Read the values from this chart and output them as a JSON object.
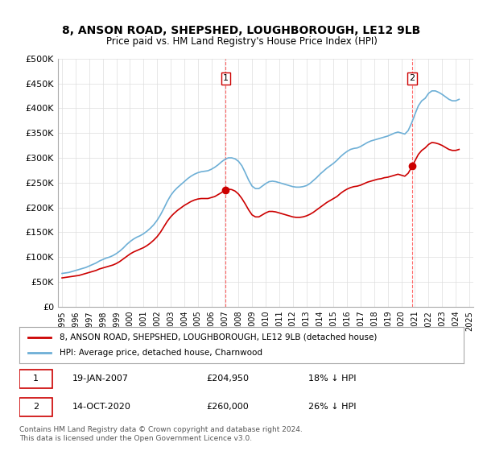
{
  "title": "8, ANSON ROAD, SHEPSHED, LOUGHBOROUGH, LE12 9LB",
  "subtitle": "Price paid vs. HM Land Registry's House Price Index (HPI)",
  "xlabel": "",
  "ylabel": "",
  "ylim": [
    0,
    500000
  ],
  "yticks": [
    0,
    50000,
    100000,
    150000,
    200000,
    250000,
    300000,
    350000,
    400000,
    450000,
    500000
  ],
  "ytick_labels": [
    "£0",
    "£50K",
    "£100K",
    "£150K",
    "£200K",
    "£250K",
    "£300K",
    "£350K",
    "£400K",
    "£450K",
    "£500K"
  ],
  "hpi_color": "#6dafd6",
  "price_color": "#cc0000",
  "annotation_color": "#cc0000",
  "vline_color": "#ff6666",
  "bg_color": "#ffffff",
  "grid_color": "#dddddd",
  "legend_box_color": "#000000",
  "transaction1_date_num": 2007.05,
  "transaction1_label": "1",
  "transaction1_price": 204950,
  "transaction1_text": "19-JAN-2007     £204,950     18% ↓ HPI",
  "transaction2_date_num": 2020.79,
  "transaction2_label": "2",
  "transaction2_price": 260000,
  "transaction2_text": "14-OCT-2020     £260,000     26% ↓ HPI",
  "legend_line1": "8, ANSON ROAD, SHEPSHED, LOUGHBOROUGH, LE12 9LB (detached house)",
  "legend_line2": "HPI: Average price, detached house, Charnwood",
  "footer": "Contains HM Land Registry data © Crown copyright and database right 2024.\nThis data is licensed under the Open Government Licence v3.0.",
  "hpi_x": [
    1995.0,
    1995.25,
    1995.5,
    1995.75,
    1996.0,
    1996.25,
    1996.5,
    1996.75,
    1997.0,
    1997.25,
    1997.5,
    1997.75,
    1998.0,
    1998.25,
    1998.5,
    1998.75,
    1999.0,
    1999.25,
    1999.5,
    1999.75,
    2000.0,
    2000.25,
    2000.5,
    2000.75,
    2001.0,
    2001.25,
    2001.5,
    2001.75,
    2002.0,
    2002.25,
    2002.5,
    2002.75,
    2003.0,
    2003.25,
    2003.5,
    2003.75,
    2004.0,
    2004.25,
    2004.5,
    2004.75,
    2005.0,
    2005.25,
    2005.5,
    2005.75,
    2006.0,
    2006.25,
    2006.5,
    2006.75,
    2007.0,
    2007.25,
    2007.5,
    2007.75,
    2008.0,
    2008.25,
    2008.5,
    2008.75,
    2009.0,
    2009.25,
    2009.5,
    2009.75,
    2010.0,
    2010.25,
    2010.5,
    2010.75,
    2011.0,
    2011.25,
    2011.5,
    2011.75,
    2012.0,
    2012.25,
    2012.5,
    2012.75,
    2013.0,
    2013.25,
    2013.5,
    2013.75,
    2014.0,
    2014.25,
    2014.5,
    2014.75,
    2015.0,
    2015.25,
    2015.5,
    2015.75,
    2016.0,
    2016.25,
    2016.5,
    2016.75,
    2017.0,
    2017.25,
    2017.5,
    2017.75,
    2018.0,
    2018.25,
    2018.5,
    2018.75,
    2019.0,
    2019.25,
    2019.5,
    2019.75,
    2020.0,
    2020.25,
    2020.5,
    2020.75,
    2021.0,
    2021.25,
    2021.5,
    2021.75,
    2022.0,
    2022.25,
    2022.5,
    2022.75,
    2023.0,
    2023.25,
    2023.5,
    2023.75,
    2024.0,
    2024.25
  ],
  "hpi_y": [
    67000,
    68000,
    69000,
    71000,
    73000,
    75000,
    77000,
    79000,
    82000,
    85000,
    88000,
    92000,
    95000,
    98000,
    100000,
    103000,
    107000,
    112000,
    118000,
    125000,
    131000,
    136000,
    140000,
    143000,
    147000,
    152000,
    158000,
    165000,
    174000,
    185000,
    198000,
    212000,
    224000,
    233000,
    240000,
    246000,
    252000,
    258000,
    263000,
    267000,
    270000,
    272000,
    273000,
    274000,
    277000,
    281000,
    286000,
    292000,
    297000,
    300000,
    300000,
    298000,
    293000,
    284000,
    270000,
    255000,
    243000,
    238000,
    238000,
    243000,
    248000,
    252000,
    253000,
    252000,
    250000,
    248000,
    246000,
    244000,
    242000,
    241000,
    241000,
    242000,
    244000,
    248000,
    254000,
    260000,
    267000,
    273000,
    279000,
    284000,
    289000,
    295000,
    302000,
    308000,
    313000,
    317000,
    319000,
    320000,
    323000,
    327000,
    331000,
    334000,
    336000,
    338000,
    340000,
    342000,
    344000,
    347000,
    350000,
    352000,
    350000,
    348000,
    355000,
    370000,
    388000,
    405000,
    415000,
    420000,
    430000,
    435000,
    435000,
    432000,
    428000,
    423000,
    418000,
    415000,
    415000,
    418000
  ],
  "price_x": [
    1995.0,
    1995.25,
    1995.5,
    1995.75,
    1996.0,
    1996.25,
    1996.5,
    1996.75,
    1997.0,
    1997.25,
    1997.5,
    1997.75,
    1998.0,
    1998.25,
    1998.5,
    1998.75,
    1999.0,
    1999.25,
    1999.5,
    1999.75,
    2000.0,
    2000.25,
    2000.5,
    2000.75,
    2001.0,
    2001.25,
    2001.5,
    2001.75,
    2002.0,
    2002.25,
    2002.5,
    2002.75,
    2003.0,
    2003.25,
    2003.5,
    2003.75,
    2004.0,
    2004.25,
    2004.5,
    2004.75,
    2005.0,
    2005.25,
    2005.5,
    2005.75,
    2006.0,
    2006.25,
    2006.5,
    2006.75,
    2007.0,
    2007.25,
    2007.5,
    2007.75,
    2008.0,
    2008.25,
    2008.5,
    2008.75,
    2009.0,
    2009.25,
    2009.5,
    2009.75,
    2010.0,
    2010.25,
    2010.5,
    2010.75,
    2011.0,
    2011.25,
    2011.5,
    2011.75,
    2012.0,
    2012.25,
    2012.5,
    2012.75,
    2013.0,
    2013.25,
    2013.5,
    2013.75,
    2014.0,
    2014.25,
    2014.5,
    2014.75,
    2015.0,
    2015.25,
    2015.5,
    2015.75,
    2016.0,
    2016.25,
    2016.5,
    2016.75,
    2017.0,
    2017.25,
    2017.5,
    2017.75,
    2018.0,
    2018.25,
    2018.5,
    2018.75,
    2019.0,
    2019.25,
    2019.5,
    2019.75,
    2020.0,
    2020.25,
    2020.5,
    2020.75,
    2021.0,
    2021.25,
    2021.5,
    2021.75,
    2022.0,
    2022.25,
    2022.5,
    2022.75,
    2023.0,
    2023.25,
    2023.5,
    2023.75,
    2024.0,
    2024.25
  ],
  "price_y": [
    58000,
    59000,
    60000,
    61000,
    62000,
    63000,
    65000,
    67000,
    69000,
    71000,
    73000,
    76000,
    78000,
    80000,
    82000,
    84000,
    87000,
    91000,
    96000,
    101000,
    106000,
    110000,
    113000,
    116000,
    119000,
    123000,
    128000,
    134000,
    141000,
    150000,
    161000,
    172000,
    181000,
    188000,
    194000,
    199000,
    204000,
    208000,
    212000,
    215000,
    217000,
    218000,
    218000,
    218000,
    220000,
    222000,
    226000,
    230000,
    235000,
    237000,
    236000,
    233000,
    227000,
    218000,
    207000,
    195000,
    185000,
    181000,
    181000,
    185000,
    189000,
    192000,
    192000,
    191000,
    189000,
    187000,
    185000,
    183000,
    181000,
    180000,
    180000,
    181000,
    183000,
    186000,
    190000,
    195000,
    200000,
    205000,
    210000,
    214000,
    218000,
    222000,
    228000,
    233000,
    237000,
    240000,
    242000,
    243000,
    245000,
    248000,
    251000,
    253000,
    255000,
    257000,
    258000,
    260000,
    261000,
    263000,
    265000,
    267000,
    265000,
    263000,
    269000,
    281000,
    294000,
    307000,
    315000,
    320000,
    327000,
    331000,
    330000,
    328000,
    325000,
    321000,
    317000,
    315000,
    315000,
    317000
  ]
}
